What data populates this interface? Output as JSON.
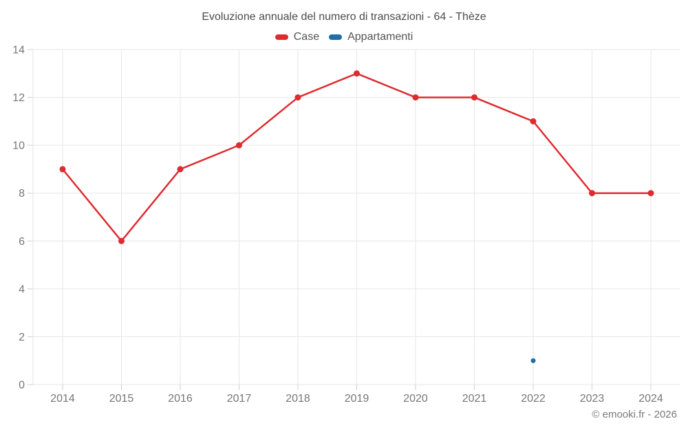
{
  "title": "Evoluzione annuale del numero di transazioni - 64 - Thèze",
  "footer": "© emooki.fr - 2026",
  "legend": [
    {
      "label": "Case",
      "color": "#df2b2f"
    },
    {
      "label": "Appartamenti",
      "color": "#1d6fa5"
    }
  ],
  "colors": {
    "case_red": "#df2b2f",
    "appartamenti_blue": "#1d6fa5",
    "gridline": "#e6e6e6",
    "axis_tick": "#cfcfcf",
    "tick_label": "#767676",
    "title_text": "#4b4b4b"
  },
  "chart_data": {
    "type": "line",
    "title": "Evoluzione annuale del numero di transazioni - 64 - Thèze",
    "categories": [
      "2014",
      "2015",
      "2016",
      "2017",
      "2018",
      "2019",
      "2020",
      "2021",
      "2022",
      "2023",
      "2024"
    ],
    "series": [
      {
        "name": "Case",
        "color": "#df2b2f",
        "values": [
          9,
          6,
          9,
          10,
          12,
          13,
          12,
          12,
          11,
          8,
          8
        ],
        "marker_radius": 4.5,
        "line_width": 2.5
      },
      {
        "name": "Appartamenti",
        "color": "#1d6fa5",
        "values": [
          null,
          null,
          null,
          null,
          null,
          null,
          null,
          null,
          1,
          null,
          null
        ],
        "marker_radius": 3.5,
        "line_width": 2.5
      }
    ],
    "xlabel": "",
    "ylabel": "",
    "ylim": [
      0,
      14
    ],
    "ytick_step": 2,
    "grid": true,
    "legend_position": "top"
  }
}
